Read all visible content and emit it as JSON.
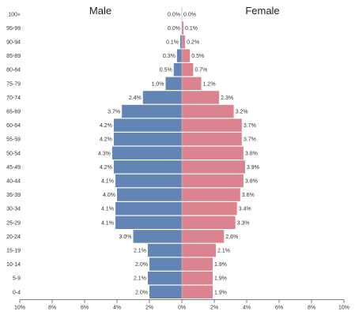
{
  "chart_data": {
    "type": "bar",
    "orientation": "horizontal-diverging",
    "categories": [
      "100+",
      "95-99",
      "90-94",
      "85-89",
      "80-84",
      "75-79",
      "70-74",
      "65-69",
      "60-64",
      "55-59",
      "50-54",
      "45-49",
      "40-44",
      "35-39",
      "30-34",
      "25-29",
      "20-24",
      "15-19",
      "10-14",
      "5-9",
      "0-4"
    ],
    "series": [
      {
        "name": "Male",
        "color": "#6385b5",
        "values": [
          0.0,
          0.0,
          0.1,
          0.3,
          0.5,
          1.0,
          2.4,
          3.7,
          4.2,
          4.2,
          4.3,
          4.2,
          4.1,
          4.0,
          4.1,
          4.1,
          3.0,
          2.1,
          2.0,
          2.1,
          2.0
        ],
        "labels": [
          "0.0%",
          "0.0%",
          "0.1%",
          "0.3%",
          "0.5%",
          "1.0%",
          "2.4%",
          "3.7%",
          "4.2%",
          "4.2%",
          "4.3%",
          "4.2%",
          "4.1%",
          "4.0%",
          "4.1%",
          "4.1%",
          "3.0%",
          "2.1%",
          "2.0%",
          "2.1%",
          "2.0%"
        ]
      },
      {
        "name": "Female",
        "color": "#db838e",
        "values": [
          0.0,
          0.1,
          0.2,
          0.5,
          0.7,
          1.2,
          2.3,
          3.2,
          3.7,
          3.7,
          3.8,
          3.9,
          3.8,
          3.6,
          3.4,
          3.3,
          2.6,
          2.1,
          1.9,
          1.9,
          1.9
        ],
        "labels": [
          "0.0%",
          "0.1%",
          "0.2%",
          "0.5%",
          "0.7%",
          "1.2%",
          "2.3%",
          "3.2%",
          "3.7%",
          "3.7%",
          "3.8%",
          "3.9%",
          "3.8%",
          "3.6%",
          "3.4%",
          "3.3%",
          "2.6%",
          "2.1%",
          "1.9%",
          "1.9%",
          "1.9%"
        ]
      }
    ],
    "xlim": [
      -10,
      10
    ],
    "x_ticks": [
      -10,
      -8,
      -6,
      -4,
      -2,
      0,
      2,
      4,
      6,
      8,
      10
    ],
    "x_tick_labels": [
      "10%",
      "8%",
      "6%",
      "4%",
      "2%",
      "0%",
      "2%",
      "4%",
      "6%",
      "8%",
      "10%"
    ],
    "left_title": "Male",
    "right_title": "Female",
    "grid": false
  }
}
